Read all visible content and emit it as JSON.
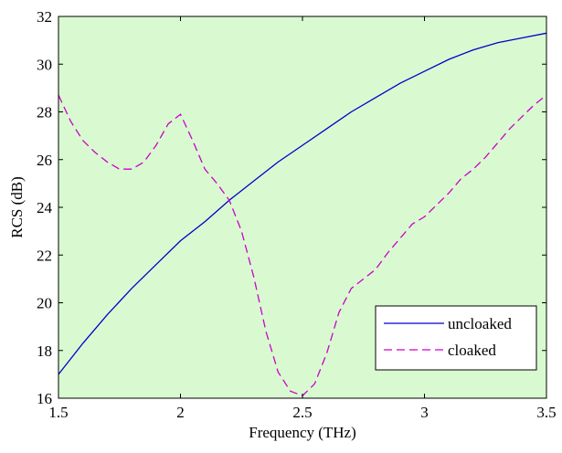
{
  "chart_data": {
    "type": "line",
    "title": "",
    "xlabel": "Frequency (THz)",
    "ylabel": "RCS (dB)",
    "xlim": [
      1.5,
      3.5
    ],
    "ylim": [
      16,
      32
    ],
    "xticks": [
      1.5,
      2,
      2.5,
      3,
      3.5
    ],
    "xtick_labels": [
      "1.5",
      "2",
      "2.5",
      "3",
      "3.5"
    ],
    "yticks": [
      16,
      18,
      20,
      22,
      24,
      26,
      28,
      30,
      32
    ],
    "ytick_labels": [
      "16",
      "18",
      "20",
      "22",
      "24",
      "26",
      "28",
      "30",
      "32"
    ],
    "grid": false,
    "legend_position": "bottom-right",
    "plot_background": "#d9fad0",
    "series": [
      {
        "name": "uncloaked",
        "color": "#0000cc",
        "line_style": "solid",
        "x": [
          1.5,
          1.6,
          1.7,
          1.8,
          1.9,
          2.0,
          2.1,
          2.2,
          2.3,
          2.4,
          2.5,
          2.6,
          2.7,
          2.8,
          2.9,
          3.0,
          3.1,
          3.2,
          3.3,
          3.4,
          3.5
        ],
        "y": [
          17.0,
          18.3,
          19.5,
          20.6,
          21.6,
          22.6,
          23.4,
          24.3,
          25.1,
          25.9,
          26.6,
          27.3,
          28.0,
          28.6,
          29.2,
          29.7,
          30.2,
          30.6,
          30.9,
          31.1,
          31.3
        ]
      },
      {
        "name": "cloaked",
        "color": "#cc00cc",
        "line_style": "dashed",
        "x": [
          1.5,
          1.55,
          1.6,
          1.65,
          1.7,
          1.75,
          1.8,
          1.85,
          1.9,
          1.95,
          2.0,
          2.05,
          2.1,
          2.15,
          2.2,
          2.25,
          2.3,
          2.35,
          2.4,
          2.45,
          2.5,
          2.55,
          2.6,
          2.65,
          2.7,
          2.75,
          2.8,
          2.85,
          2.9,
          2.95,
          3.0,
          3.05,
          3.1,
          3.15,
          3.2,
          3.25,
          3.3,
          3.35,
          3.4,
          3.45,
          3.5
        ],
        "y": [
          28.7,
          27.6,
          26.8,
          26.3,
          25.9,
          25.6,
          25.6,
          25.9,
          26.6,
          27.5,
          27.9,
          26.8,
          25.6,
          25.0,
          24.3,
          23.0,
          21.1,
          18.8,
          17.1,
          16.3,
          16.1,
          16.6,
          17.9,
          19.6,
          20.6,
          21.0,
          21.4,
          22.1,
          22.7,
          23.3,
          23.6,
          24.1,
          24.6,
          25.2,
          25.6,
          26.1,
          26.7,
          27.3,
          27.8,
          28.3,
          28.7
        ]
      }
    ]
  }
}
